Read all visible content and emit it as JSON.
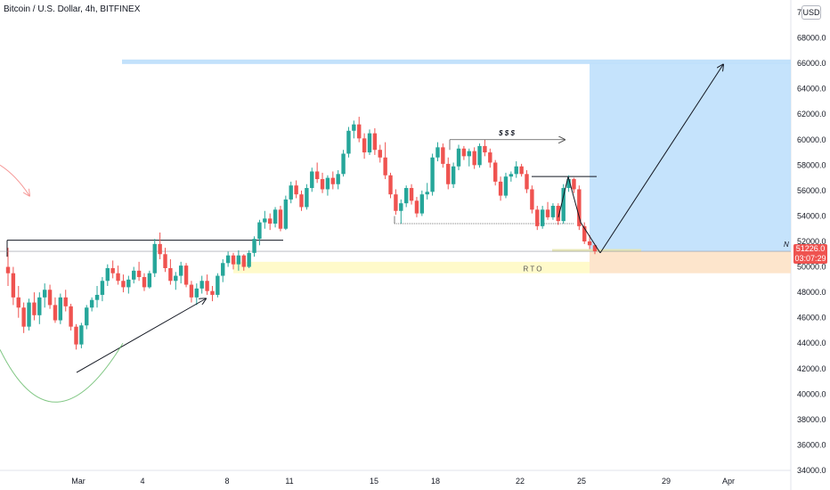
{
  "header": {
    "title": "Bitcoin / U.S. Dollar, 4h, BITFINEX",
    "currency_button": "USD"
  },
  "last_price": {
    "value": "51226.0",
    "countdown": "03:07:29",
    "marker": "N"
  },
  "colors": {
    "up": "#26a69a",
    "down": "#ef5350",
    "target_zone": "#bbdefb",
    "stop_zone": "#fde2c7",
    "rto_zone": "#fff9c4",
    "curve": "#4caf50",
    "pink_arrow": "#ef5350"
  },
  "chart_data": {
    "type": "candlestick",
    "title": "Bitcoin / U.S. Dollar, 4h, BITFINEX",
    "ylim": [
      34000,
      70000
    ],
    "y_ticks": [
      "34000.0",
      "36000.0",
      "38000.0",
      "40000.0",
      "42000.0",
      "44000.0",
      "46000.0",
      "48000.0",
      "50000.0",
      "52000.0",
      "54000.0",
      "56000.0",
      "58000.0",
      "60000.0",
      "62000.0",
      "64000.0",
      "66000.0",
      "68000.0"
    ],
    "x_ticks": [
      "Mar",
      "4",
      "8",
      "11",
      "15",
      "18",
      "22",
      "25",
      "29",
      "Apr"
    ],
    "annotations": {
      "liquidity_label": "$ $ $",
      "zone_label": "R T O"
    },
    "series": [
      {
        "values": [
          [
            50000,
            51500,
            48500,
            49500
          ],
          [
            49500,
            50000,
            47000,
            47600
          ],
          [
            47600,
            48500,
            46000,
            46800
          ],
          [
            46800,
            47200,
            44800,
            45300
          ],
          [
            45300,
            47500,
            45000,
            47200
          ],
          [
            47200,
            48000,
            45800,
            46200
          ],
          [
            46200,
            48000,
            45500,
            47600
          ],
          [
            47600,
            48700,
            46800,
            48200
          ],
          [
            48200,
            48600,
            46700,
            47000
          ],
          [
            47000,
            47600,
            45600,
            45800
          ],
          [
            45800,
            47900,
            45500,
            47600
          ],
          [
            47600,
            48200,
            46500,
            46900
          ],
          [
            46900,
            47100,
            45000,
            45300
          ],
          [
            45300,
            45500,
            43500,
            43900
          ],
          [
            43900,
            45600,
            43600,
            45400
          ],
          [
            45400,
            47000,
            45100,
            46800
          ],
          [
            46800,
            47600,
            46500,
            47400
          ],
          [
            47400,
            48500,
            46800,
            47800
          ],
          [
            47800,
            49200,
            47300,
            48900
          ],
          [
            48900,
            50200,
            48500,
            49900
          ],
          [
            49900,
            50500,
            49100,
            49500
          ],
          [
            49500,
            50100,
            48600,
            48900
          ],
          [
            48900,
            49400,
            48000,
            48400
          ],
          [
            48400,
            49300,
            47900,
            49000
          ],
          [
            49000,
            50000,
            48700,
            49700
          ],
          [
            49700,
            50400,
            48900,
            49200
          ],
          [
            49200,
            49500,
            48100,
            48400
          ],
          [
            48400,
            49700,
            48300,
            49500
          ],
          [
            49500,
            52200,
            49200,
            51800
          ],
          [
            51800,
            52700,
            50600,
            51000
          ],
          [
            51000,
            51500,
            49600,
            49900
          ],
          [
            49900,
            50600,
            48600,
            48900
          ],
          [
            48900,
            49600,
            48200,
            49300
          ],
          [
            49300,
            50400,
            48700,
            50100
          ],
          [
            50100,
            50300,
            48400,
            48600
          ],
          [
            48600,
            48900,
            47200,
            47600
          ],
          [
            47600,
            48700,
            47000,
            48300
          ],
          [
            48300,
            49300,
            47900,
            48900
          ],
          [
            48900,
            49400,
            47800,
            48100
          ],
          [
            48100,
            48500,
            47300,
            47800
          ],
          [
            47800,
            49500,
            47600,
            49300
          ],
          [
            49300,
            50600,
            48800,
            50300
          ],
          [
            50300,
            51200,
            50000,
            50900
          ],
          [
            50900,
            51100,
            49800,
            50200
          ],
          [
            50200,
            51300,
            49700,
            50900
          ],
          [
            50900,
            51000,
            49700,
            50000
          ],
          [
            50000,
            51300,
            49900,
            51100
          ],
          [
            51100,
            52400,
            50800,
            52200
          ],
          [
            52200,
            53700,
            51700,
            53500
          ],
          [
            53500,
            54400,
            53000,
            53800
          ],
          [
            53800,
            54200,
            52900,
            53400
          ],
          [
            53400,
            54700,
            53100,
            54500
          ],
          [
            54500,
            54800,
            52800,
            53000
          ],
          [
            53000,
            55600,
            52900,
            55300
          ],
          [
            55300,
            56700,
            55000,
            56400
          ],
          [
            56400,
            56800,
            55400,
            55700
          ],
          [
            55700,
            56000,
            54400,
            54700
          ],
          [
            54700,
            56500,
            54500,
            56200
          ],
          [
            56200,
            57800,
            55900,
            57500
          ],
          [
            57500,
            58200,
            56600,
            56900
          ],
          [
            56900,
            57400,
            55800,
            56100
          ],
          [
            56100,
            57200,
            55600,
            57000
          ],
          [
            57000,
            57500,
            56100,
            56500
          ],
          [
            56500,
            57600,
            56100,
            57300
          ],
          [
            57300,
            59200,
            57100,
            58900
          ],
          [
            58900,
            61000,
            58600,
            60700
          ],
          [
            60700,
            61500,
            60100,
            61200
          ],
          [
            61200,
            61800,
            59800,
            60100
          ],
          [
            60100,
            60500,
            58500,
            59000
          ],
          [
            59000,
            60800,
            58800,
            60500
          ],
          [
            60500,
            60900,
            58800,
            59200
          ],
          [
            59200,
            59600,
            58200,
            58600
          ],
          [
            58600,
            59800,
            56900,
            57200
          ],
          [
            57200,
            57400,
            55400,
            55700
          ],
          [
            55700,
            56100,
            54100,
            54400
          ],
          [
            54400,
            55300,
            53400,
            55000
          ],
          [
            55000,
            56400,
            54700,
            56200
          ],
          [
            56200,
            56500,
            54900,
            55200
          ],
          [
            55200,
            55500,
            53900,
            54200
          ],
          [
            54200,
            56000,
            54000,
            55700
          ],
          [
            55700,
            56600,
            55300,
            55900
          ],
          [
            55900,
            58900,
            55600,
            58600
          ],
          [
            58600,
            59800,
            58300,
            59400
          ],
          [
            59400,
            59700,
            57800,
            58100
          ],
          [
            58100,
            58600,
            56100,
            56500
          ],
          [
            56500,
            58200,
            56200,
            57900
          ],
          [
            57900,
            59600,
            57600,
            59300
          ],
          [
            59300,
            59500,
            58400,
            58700
          ],
          [
            58700,
            59300,
            57900,
            59100
          ],
          [
            59100,
            59400,
            57700,
            58000
          ],
          [
            58000,
            59700,
            57800,
            59500
          ],
          [
            59500,
            60000,
            58700,
            59000
          ],
          [
            59000,
            59300,
            57800,
            58200
          ],
          [
            58200,
            58400,
            56400,
            56700
          ],
          [
            56700,
            57100,
            55200,
            55600
          ],
          [
            55600,
            57400,
            55400,
            57100
          ],
          [
            57100,
            57500,
            56700,
            57300
          ],
          [
            57300,
            58300,
            57000,
            57900
          ],
          [
            57900,
            58100,
            57100,
            57300
          ],
          [
            57300,
            57600,
            55800,
            56100
          ],
          [
            56100,
            56400,
            54200,
            54500
          ],
          [
            54500,
            54800,
            52900,
            53200
          ],
          [
            53200,
            54800,
            53000,
            54500
          ],
          [
            54500,
            55100,
            53700,
            53900
          ],
          [
            53900,
            55000,
            53700,
            54800
          ],
          [
            54800,
            55000,
            53300,
            53600
          ],
          [
            53600,
            56500,
            53400,
            56200
          ],
          [
            56200,
            57200,
            55900,
            56900
          ],
          [
            56900,
            57000,
            55800,
            56100
          ],
          [
            56100,
            56400,
            52900,
            53200
          ],
          [
            53200,
            53500,
            51800,
            52000
          ],
          [
            52000,
            52500,
            51400,
            51700
          ],
          [
            51700,
            51800,
            51000,
            51226
          ]
        ]
      }
    ]
  }
}
